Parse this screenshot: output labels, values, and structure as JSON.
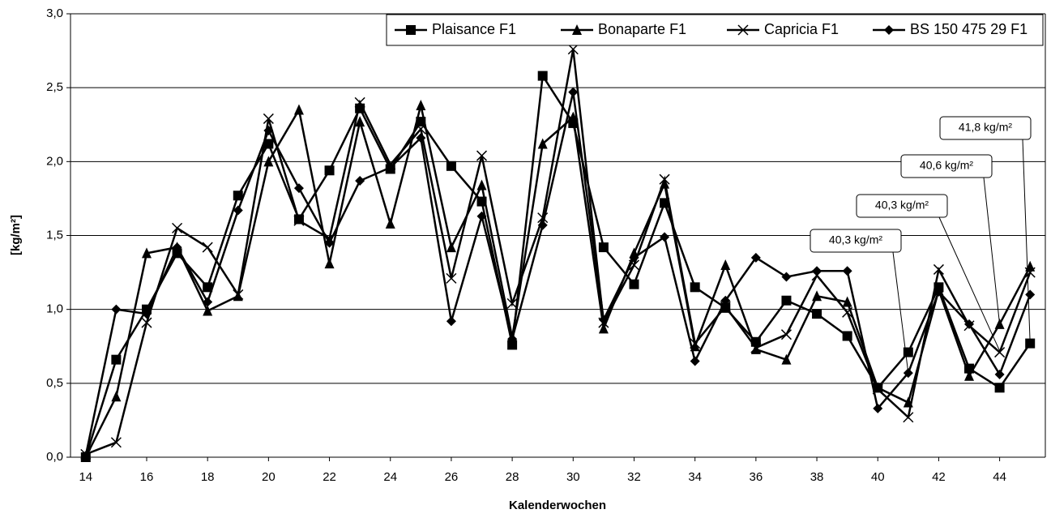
{
  "chart_data": {
    "type": "line",
    "y_label": "[kg/m²]",
    "x_label": "Kalenderwochen",
    "x": [
      14,
      15,
      16,
      17,
      18,
      19,
      20,
      21,
      22,
      23,
      24,
      25,
      26,
      27,
      28,
      29,
      30,
      31,
      32,
      33,
      34,
      35,
      36,
      37,
      38,
      39,
      40,
      41,
      42,
      43,
      44,
      45
    ],
    "xlim": [
      13.5,
      45.5
    ],
    "xticks": [
      14,
      16,
      18,
      20,
      22,
      24,
      26,
      28,
      30,
      32,
      34,
      36,
      38,
      40,
      42,
      44
    ],
    "ylim": [
      0,
      3
    ],
    "yticks": [
      {
        "value": 0,
        "label": "0,0"
      },
      {
        "value": 0.5,
        "label": "0,5"
      },
      {
        "value": 1,
        "label": "1,0"
      },
      {
        "value": 1.5,
        "label": "1,5"
      },
      {
        "value": 2,
        "label": "2,0"
      },
      {
        "value": 2.5,
        "label": "2,5"
      },
      {
        "value": 3,
        "label": "3,0"
      }
    ],
    "grid": true,
    "legend": "top-right",
    "series": [
      {
        "name": "Plaisance F1",
        "color": "#000000",
        "marker": "square",
        "values": [
          0.0,
          0.66,
          1.0,
          1.38,
          1.15,
          1.77,
          2.12,
          1.61,
          1.94,
          2.36,
          1.95,
          2.27,
          1.97,
          1.73,
          0.76,
          2.58,
          2.26,
          1.42,
          1.17,
          1.72,
          1.15,
          1.01,
          0.78,
          1.06,
          0.97,
          0.82,
          0.47,
          0.71,
          1.15,
          0.6,
          0.47,
          0.77
        ]
      },
      {
        "name": "Bonaparte F1",
        "color": "#000000",
        "marker": "triangle",
        "values": [
          0.0,
          0.41,
          1.38,
          1.42,
          0.99,
          1.09,
          2.0,
          2.35,
          1.31,
          2.27,
          1.58,
          2.38,
          1.42,
          1.84,
          0.81,
          2.12,
          2.3,
          0.87,
          1.38,
          1.85,
          0.75,
          1.3,
          0.73,
          0.66,
          1.09,
          1.05,
          0.47,
          0.37,
          1.13,
          0.55,
          0.9,
          1.29
        ]
      },
      {
        "name": "Capricia F1",
        "color": "#000000",
        "marker": "cross",
        "values": [
          0.02,
          0.1,
          0.91,
          1.55,
          1.42,
          1.1,
          2.29,
          1.6,
          1.48,
          2.4,
          1.98,
          2.22,
          1.21,
          2.04,
          1.04,
          1.62,
          2.76,
          0.91,
          1.3,
          1.88,
          0.77,
          1.02,
          0.74,
          0.83,
          1.23,
          0.98,
          0.46,
          0.27,
          1.27,
          0.89,
          0.71,
          1.25
        ]
      },
      {
        "name": "BS 150 475 29 F1",
        "color": "#000000",
        "marker": "diamond",
        "values": [
          0.01,
          1.0,
          0.97,
          1.42,
          1.05,
          1.67,
          2.21,
          1.82,
          1.45,
          1.87,
          1.96,
          2.16,
          0.92,
          1.63,
          0.8,
          1.57,
          2.47,
          0.93,
          1.35,
          1.49,
          0.65,
          1.06,
          1.35,
          1.22,
          1.26,
          1.26,
          0.33,
          0.57,
          1.12,
          0.9,
          0.56,
          1.1
        ]
      }
    ],
    "annotations": [
      "40,3 kg/m²",
      "40,3 kg/m²",
      "40,6 kg/m²",
      "41,8 kg/m²"
    ]
  }
}
